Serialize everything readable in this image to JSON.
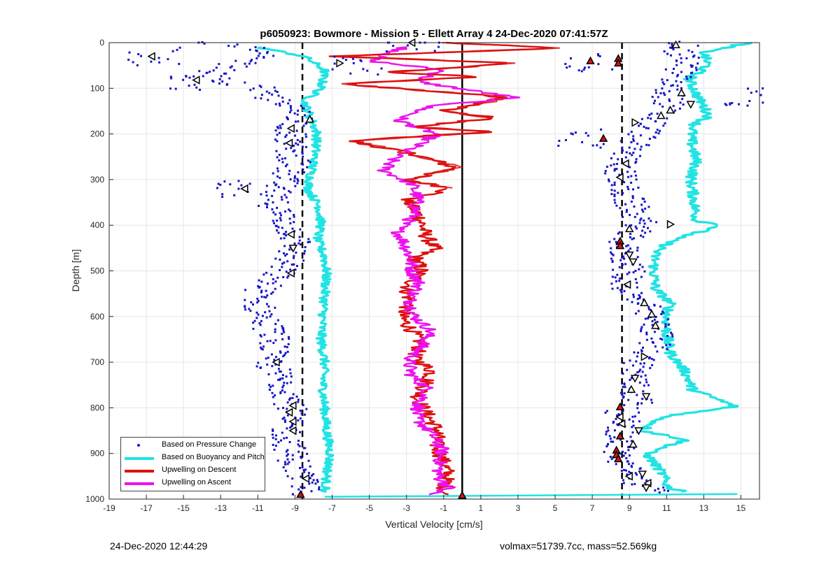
{
  "chart_data": {
    "type": "scatter",
    "title": "p6050923: Bowmore - Mission 5 - Ellett Array 4 24-Dec-2020 07:41:57Z",
    "xlabel": "Vertical Velocity [cm/s]",
    "ylabel": "Depth [m]",
    "xlim": [
      -19,
      16
    ],
    "ylim": [
      1000,
      0
    ],
    "y_reversed": true,
    "xticks": [
      -19,
      -17,
      -15,
      -13,
      -11,
      -9,
      -7,
      -5,
      -3,
      -1,
      1,
      3,
      5,
      7,
      9,
      11,
      13,
      15
    ],
    "yticks": [
      0,
      100,
      200,
      300,
      400,
      500,
      600,
      700,
      800,
      900,
      1000
    ],
    "grid": true,
    "legend_position": "bottom-left",
    "reference_lines": [
      {
        "style": "dashed",
        "color": "#000000",
        "x": -8.6
      },
      {
        "style": "solid",
        "color": "#000000",
        "x": 0
      },
      {
        "style": "dashed",
        "color": "#000000",
        "x": 8.6
      }
    ],
    "series": [
      {
        "name": "Based on Pressure Change",
        "style": "points",
        "color": "#1515c8",
        "left_profile": [
          [
            -14,
            0
          ],
          [
            -11.5,
            10
          ],
          [
            -11,
            30
          ],
          [
            -13,
            60
          ],
          [
            -14,
            75
          ],
          [
            -11,
            100
          ],
          [
            -10,
            130
          ],
          [
            -8.5,
            160
          ],
          [
            -9.2,
            190
          ],
          [
            -9.3,
            220
          ],
          [
            -9,
            260
          ],
          [
            -9.6,
            300
          ],
          [
            -10.3,
            340
          ],
          [
            -9.7,
            380
          ],
          [
            -9.2,
            410
          ],
          [
            -8.9,
            440
          ],
          [
            -9.3,
            470
          ],
          [
            -10,
            510
          ],
          [
            -10.8,
            540
          ],
          [
            -11,
            570
          ],
          [
            -10.7,
            600
          ],
          [
            -10.2,
            640
          ],
          [
            -10,
            660
          ],
          [
            -10.5,
            690
          ],
          [
            -10.2,
            710
          ],
          [
            -9.8,
            740
          ],
          [
            -9.3,
            770
          ],
          [
            -9.2,
            800
          ],
          [
            -9.5,
            830
          ],
          [
            -9.4,
            860
          ],
          [
            -9.2,
            900
          ],
          [
            -8.8,
            940
          ],
          [
            -8.5,
            970
          ],
          [
            -8.3,
            990
          ]
        ],
        "right_profile": [
          [
            12,
            0
          ],
          [
            11.5,
            20
          ],
          [
            12.2,
            40
          ],
          [
            11.6,
            70
          ],
          [
            11,
            100
          ],
          [
            11.2,
            130
          ],
          [
            10.3,
            170
          ],
          [
            9.8,
            200
          ],
          [
            9,
            230
          ],
          [
            8.7,
            260
          ],
          [
            8.5,
            290
          ],
          [
            8.7,
            330
          ],
          [
            9.3,
            370
          ],
          [
            9.7,
            400
          ],
          [
            8.9,
            420
          ],
          [
            8.6,
            450
          ],
          [
            9,
            490
          ],
          [
            8.8,
            520
          ],
          [
            9,
            550
          ],
          [
            9.8,
            580
          ],
          [
            10.3,
            610
          ],
          [
            10.5,
            640
          ],
          [
            10.3,
            670
          ],
          [
            9.6,
            700
          ],
          [
            9.3,
            730
          ],
          [
            9.2,
            760
          ],
          [
            9.5,
            790
          ],
          [
            8.6,
            810
          ],
          [
            8.7,
            840
          ],
          [
            8.5,
            870
          ],
          [
            8.4,
            900
          ],
          [
            8.9,
            940
          ],
          [
            9.7,
            970
          ],
          [
            10.4,
            985
          ]
        ],
        "scatter_clusters": [
          [
            -16.5,
            30
          ],
          [
            -14.3,
            85
          ],
          [
            -12,
            320
          ],
          [
            6.7,
            45
          ],
          [
            6.3,
            210
          ],
          [
            15.5,
            120
          ],
          [
            -2.7,
            0
          ],
          [
            -5.5,
            50
          ]
        ]
      },
      {
        "name": "Based on Buoyancy and Pitch",
        "style": "line",
        "color": "#22e3e3",
        "left_profile": [
          [
            -11,
            10
          ],
          [
            -8.5,
            30
          ],
          [
            -7.4,
            60
          ],
          [
            -7.6,
            100
          ],
          [
            -8.5,
            130
          ],
          [
            -8.1,
            170
          ],
          [
            -7.8,
            200
          ],
          [
            -7.9,
            240
          ],
          [
            -8.1,
            280
          ],
          [
            -8.3,
            320
          ],
          [
            -7.7,
            360
          ],
          [
            -7.6,
            400
          ],
          [
            -7.8,
            430
          ],
          [
            -7.4,
            470
          ],
          [
            -7.3,
            510
          ],
          [
            -7.4,
            550
          ],
          [
            -7.5,
            600
          ],
          [
            -7.6,
            650
          ],
          [
            -7.4,
            700
          ],
          [
            -7.5,
            750
          ],
          [
            -7.4,
            800
          ],
          [
            -7.3,
            850
          ],
          [
            -7.1,
            900
          ],
          [
            -7.3,
            950
          ],
          [
            -7.4,
            985
          ]
        ],
        "right_profile": [
          [
            15.5,
            0
          ],
          [
            13,
            20
          ],
          [
            13.2,
            50
          ],
          [
            12.2,
            80
          ],
          [
            12.7,
            120
          ],
          [
            13.3,
            160
          ],
          [
            12.5,
            180
          ],
          [
            12.3,
            210
          ],
          [
            12.6,
            260
          ],
          [
            12.3,
            300
          ],
          [
            12.5,
            350
          ],
          [
            12.6,
            390
          ],
          [
            14,
            400
          ],
          [
            11.4,
            430
          ],
          [
            10.4,
            460
          ],
          [
            10.3,
            500
          ],
          [
            10.4,
            540
          ],
          [
            11.2,
            570
          ],
          [
            11,
            600
          ],
          [
            11,
            640
          ],
          [
            11.2,
            680
          ],
          [
            12,
            720
          ],
          [
            12.4,
            760
          ],
          [
            14.7,
            797
          ],
          [
            10.8,
            820
          ],
          [
            9.7,
            850
          ],
          [
            12.1,
            870
          ],
          [
            9.9,
            900
          ],
          [
            10.7,
            940
          ],
          [
            11.1,
            975
          ],
          [
            12.2,
            985
          ]
        ],
        "bottom_spike_x": [
          -7.4,
          14.8
        ],
        "bottom_spike_depth": 995
      },
      {
        "name": "Upwelling on Descent",
        "style": "line",
        "color": "#dd1111",
        "profile": [
          [
            -1,
            0
          ],
          [
            5.2,
            12
          ],
          [
            -6.9,
            30
          ],
          [
            2.8,
            45
          ],
          [
            -4,
            65
          ],
          [
            1,
            75
          ],
          [
            -6.5,
            90
          ],
          [
            2.5,
            120
          ],
          [
            -1,
            150
          ],
          [
            1.8,
            165
          ],
          [
            -2.8,
            185
          ],
          [
            1.8,
            195
          ],
          [
            -6,
            215
          ],
          [
            -2.5,
            245
          ],
          [
            -0.3,
            275
          ],
          [
            -3,
            300
          ],
          [
            -0.5,
            320
          ],
          [
            -3,
            345
          ],
          [
            -2.3,
            380
          ],
          [
            -2,
            420
          ],
          [
            -1.5,
            450
          ],
          [
            -2.5,
            470
          ],
          [
            -2.2,
            500
          ],
          [
            -3,
            540
          ],
          [
            -2.8,
            570
          ],
          [
            -3.3,
            600
          ],
          [
            -2.7,
            630
          ],
          [
            -2.2,
            660
          ],
          [
            -2.6,
            690
          ],
          [
            -1.6,
            720
          ],
          [
            -2,
            750
          ],
          [
            -2.4,
            780
          ],
          [
            -1.8,
            820
          ],
          [
            -1.3,
            850
          ],
          [
            -1.4,
            880
          ],
          [
            -1.1,
            910
          ],
          [
            -0.8,
            940
          ],
          [
            -0.9,
            970
          ],
          [
            -1,
            990
          ]
        ]
      },
      {
        "name": "Upwelling on Ascent",
        "style": "line",
        "color": "#ee11ee",
        "profile": [
          [
            -3,
            10
          ],
          [
            -5,
            40
          ],
          [
            -1,
            60
          ],
          [
            -2.5,
            85
          ],
          [
            2.8,
            120
          ],
          [
            -1.8,
            140
          ],
          [
            -3.5,
            170
          ],
          [
            -1.4,
            200
          ],
          [
            -2.2,
            220
          ],
          [
            -3.6,
            250
          ],
          [
            -4.2,
            280
          ],
          [
            -2.7,
            310
          ],
          [
            -2.4,
            340
          ],
          [
            -2.6,
            380
          ],
          [
            -3.5,
            410
          ],
          [
            -3.1,
            440
          ],
          [
            -2.8,
            470
          ],
          [
            -2.7,
            500
          ],
          [
            -2.3,
            530
          ],
          [
            -2.8,
            560
          ],
          [
            -2.6,
            600
          ],
          [
            -1.7,
            630
          ],
          [
            -2.1,
            660
          ],
          [
            -2.9,
            700
          ],
          [
            -2.7,
            730
          ],
          [
            -1.8,
            760
          ],
          [
            -2.3,
            790
          ],
          [
            -2.5,
            820
          ],
          [
            -1.6,
            860
          ],
          [
            -1.1,
            890
          ],
          [
            -1.2,
            920
          ],
          [
            -1.3,
            950
          ],
          [
            -0.7,
            975
          ],
          [
            -1.8,
            990
          ]
        ]
      }
    ],
    "triangle_markers": [
      {
        "x": -16.7,
        "y": 30,
        "fill": "white",
        "dir": "left"
      },
      {
        "x": -14.3,
        "y": 82,
        "fill": "white",
        "dir": "left"
      },
      {
        "x": -8.2,
        "y": 168,
        "fill": "white",
        "dir": "up"
      },
      {
        "x": -9.2,
        "y": 188,
        "fill": "white",
        "dir": "left"
      },
      {
        "x": -9.3,
        "y": 220,
        "fill": "white",
        "dir": "left"
      },
      {
        "x": -11.7,
        "y": 320,
        "fill": "white",
        "dir": "left"
      },
      {
        "x": -9.2,
        "y": 420,
        "fill": "white",
        "dir": "left"
      },
      {
        "x": -9.1,
        "y": 450,
        "fill": "white",
        "dir": "down"
      },
      {
        "x": -9.2,
        "y": 505,
        "fill": "white",
        "dir": "left"
      },
      {
        "x": -10,
        "y": 700,
        "fill": "white",
        "dir": "left"
      },
      {
        "x": -9.1,
        "y": 795,
        "fill": "white",
        "dir": "left"
      },
      {
        "x": -9.3,
        "y": 810,
        "fill": "white",
        "dir": "left"
      },
      {
        "x": -9.1,
        "y": 830,
        "fill": "white",
        "dir": "left"
      },
      {
        "x": -9.1,
        "y": 850,
        "fill": "white",
        "dir": "left"
      },
      {
        "x": -8.4,
        "y": 955,
        "fill": "white",
        "dir": "left"
      },
      {
        "x": -8.7,
        "y": 990,
        "fill": "red",
        "dir": "up"
      },
      {
        "x": -2.7,
        "y": 0,
        "fill": "white",
        "dir": "left"
      },
      {
        "x": -6.6,
        "y": 45,
        "fill": "white",
        "dir": "right"
      },
      {
        "x": 0,
        "y": 992,
        "fill": "red",
        "dir": "up"
      },
      {
        "x": 6.9,
        "y": 40,
        "fill": "red",
        "dir": "up"
      },
      {
        "x": 8.4,
        "y": 35,
        "fill": "red",
        "dir": "up"
      },
      {
        "x": 8.4,
        "y": 45,
        "fill": "red",
        "dir": "up"
      },
      {
        "x": 7.6,
        "y": 210,
        "fill": "red",
        "dir": "up"
      },
      {
        "x": 11.5,
        "y": 5,
        "fill": "white",
        "dir": "up"
      },
      {
        "x": 11.8,
        "y": 110,
        "fill": "white",
        "dir": "up"
      },
      {
        "x": 12.3,
        "y": 135,
        "fill": "white",
        "dir": "down"
      },
      {
        "x": 11.2,
        "y": 148,
        "fill": "white",
        "dir": "up"
      },
      {
        "x": 10.7,
        "y": 160,
        "fill": "white",
        "dir": "up"
      },
      {
        "x": 9.3,
        "y": 175,
        "fill": "white",
        "dir": "right"
      },
      {
        "x": 8.8,
        "y": 265,
        "fill": "white",
        "dir": "left"
      },
      {
        "x": 8.5,
        "y": 295,
        "fill": "white",
        "dir": "left"
      },
      {
        "x": 11.2,
        "y": 398,
        "fill": "white",
        "dir": "right"
      },
      {
        "x": 9,
        "y": 408,
        "fill": "white",
        "dir": "up"
      },
      {
        "x": 8.5,
        "y": 435,
        "fill": "red",
        "dir": "up"
      },
      {
        "x": 8.5,
        "y": 445,
        "fill": "red",
        "dir": "up"
      },
      {
        "x": 9,
        "y": 465,
        "fill": "white",
        "dir": "down"
      },
      {
        "x": 9.2,
        "y": 480,
        "fill": "white",
        "dir": "down"
      },
      {
        "x": 8.9,
        "y": 530,
        "fill": "white",
        "dir": "left"
      },
      {
        "x": 9.8,
        "y": 570,
        "fill": "white",
        "dir": "up"
      },
      {
        "x": 10.2,
        "y": 595,
        "fill": "white",
        "dir": "up"
      },
      {
        "x": 10.4,
        "y": 620,
        "fill": "white",
        "dir": "up"
      },
      {
        "x": 9.8,
        "y": 688,
        "fill": "white",
        "dir": "right"
      },
      {
        "x": 9.3,
        "y": 735,
        "fill": "white",
        "dir": "down"
      },
      {
        "x": 9.1,
        "y": 760,
        "fill": "white",
        "dir": "up"
      },
      {
        "x": 9.9,
        "y": 775,
        "fill": "white",
        "dir": "down"
      },
      {
        "x": 8.5,
        "y": 798,
        "fill": "red",
        "dir": "up"
      },
      {
        "x": 8.5,
        "y": 820,
        "fill": "white",
        "dir": "left"
      },
      {
        "x": 8.6,
        "y": 835,
        "fill": "white",
        "dir": "left"
      },
      {
        "x": 9.5,
        "y": 850,
        "fill": "white",
        "dir": "down"
      },
      {
        "x": 8.5,
        "y": 862,
        "fill": "red",
        "dir": "up"
      },
      {
        "x": 9.2,
        "y": 880,
        "fill": "white",
        "dir": "up"
      },
      {
        "x": 8.3,
        "y": 893,
        "fill": "red",
        "dir": "up"
      },
      {
        "x": 8.3,
        "y": 903,
        "fill": "red",
        "dir": "up"
      },
      {
        "x": 8.4,
        "y": 912,
        "fill": "red",
        "dir": "up"
      },
      {
        "x": 9,
        "y": 950,
        "fill": "white",
        "dir": "left"
      },
      {
        "x": 9.7,
        "y": 945,
        "fill": "white",
        "dir": "down"
      },
      {
        "x": 10,
        "y": 965,
        "fill": "white",
        "dir": "left"
      },
      {
        "x": 9.9,
        "y": 975,
        "fill": "white",
        "dir": "down"
      }
    ]
  },
  "footer": {
    "timestamp": "24-Dec-2020 12:44:29",
    "summary": "volmax=51739.7cc, mass=52.569kg"
  }
}
